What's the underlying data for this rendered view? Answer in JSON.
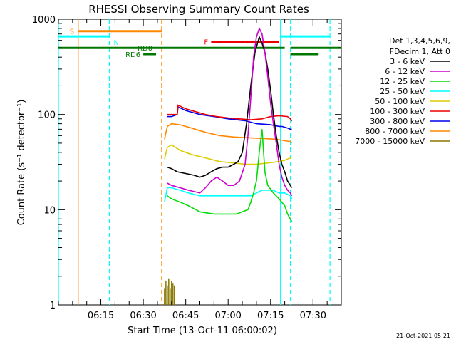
{
  "chart_data": {
    "type": "line",
    "title": "RHESSI Observing Summary Count Rates",
    "ylabel": "Count Rate (s⁻¹ detector⁻¹)",
    "xlabel": "Start Time (13-Oct-11 06:00:02)",
    "footer_date": "21-Oct-2021 05:21",
    "y_scale": "log",
    "ylim": [
      1,
      1000
    ],
    "y_ticks": [
      1,
      10,
      100,
      1000
    ],
    "y_tick_labels": [
      "1",
      "10",
      "100",
      "1000"
    ],
    "xlim_minutes": [
      0,
      100
    ],
    "x_ticks_minutes": [
      15,
      30,
      45,
      60,
      75,
      90
    ],
    "x_tick_labels": [
      "06:15",
      "06:30",
      "06:45",
      "07:00",
      "07:15",
      "07:30"
    ],
    "legend": {
      "header": [
        "Det 1,3,4,5,6,9,",
        "FDecim 1, Att 0"
      ],
      "position": "right",
      "entries": [
        {
          "label": "3 - 6 keV",
          "color": "#000000"
        },
        {
          "label": "6 - 12 keV",
          "color": "#cc00cc"
        },
        {
          "label": "12 - 25 keV",
          "color": "#00dd00"
        },
        {
          "label": "25 - 50 keV",
          "color": "#00ffff"
        },
        {
          "label": "50 - 100 keV",
          "color": "#ddcc00"
        },
        {
          "label": "100 - 300 keV",
          "color": "#ee0000"
        },
        {
          "label": "300 - 800 keV",
          "color": "#0000ee"
        },
        {
          "label": "800 - 7000 keV",
          "color": "#ff8800"
        },
        {
          "label": "7000 - 15000 keV",
          "color": "#887700"
        }
      ]
    },
    "flag_bars": [
      {
        "label": "S",
        "color": "#ff8800",
        "y": 750,
        "segments": [
          [
            7,
            36.5
          ]
        ]
      },
      {
        "label": "N",
        "color": "#00ffff",
        "y": 660,
        "segments": [
          [
            0,
            18
          ],
          [
            78.5,
            96
          ]
        ]
      },
      {
        "label": "RD0",
        "color": "#007700",
        "y": 500,
        "segments": [
          [
            0,
            80
          ],
          [
            82,
            100
          ]
        ]
      },
      {
        "label": "RD6",
        "color": "#007700",
        "y": 430,
        "segments": [
          [
            30,
            34.5
          ],
          [
            82,
            92
          ]
        ]
      },
      {
        "label": "F",
        "color": "#ee0000",
        "y": 580,
        "segments": [
          [
            54,
            78
          ]
        ]
      }
    ],
    "event_markers": [
      {
        "x": 0,
        "color": "#00ffff",
        "style": "solid"
      },
      {
        "x": 7,
        "color": "#ff8800",
        "style": "solid"
      },
      {
        "x": 18,
        "color": "#00ffff",
        "style": "dashed"
      },
      {
        "x": 36.5,
        "color": "#ff8800",
        "style": "dashed"
      },
      {
        "x": 78.5,
        "color": "#00ffff",
        "style": "solid"
      },
      {
        "x": 82,
        "color": "#00ffff",
        "style": "dashed"
      },
      {
        "x": 96,
        "color": "#00ffff",
        "style": "dashed"
      }
    ],
    "series": [
      {
        "name": "300 - 800 keV",
        "color": "#0000ee",
        "x": [
          38.5,
          40,
          42,
          42.3,
          45,
          50,
          55,
          60,
          63,
          66,
          70,
          75,
          78,
          78.5,
          79,
          81,
          82,
          82.5
        ],
        "y": [
          95,
          95,
          100,
          120,
          110,
          100,
          95,
          90,
          88,
          86,
          80,
          78,
          75,
          75,
          75,
          72,
          70,
          70
        ]
      },
      {
        "name": "100 - 300 keV",
        "color": "#ee0000",
        "x": [
          38.5,
          40,
          42,
          42.3,
          45,
          48,
          52,
          56,
          60,
          64,
          68,
          72,
          75,
          78,
          81,
          82,
          82.5
        ],
        "y": [
          100,
          100,
          100,
          125,
          115,
          108,
          100,
          95,
          92,
          90,
          88,
          90,
          95,
          97,
          95,
          90,
          85
        ]
      },
      {
        "name": "800 - 7000 keV",
        "color": "#ff8800",
        "x": [
          37.5,
          38.5,
          40,
          43,
          47,
          52,
          57,
          62,
          67,
          72,
          77,
          80,
          82,
          82.5
        ],
        "y": [
          55,
          75,
          80,
          78,
          72,
          65,
          60,
          58,
          57,
          56,
          55,
          53,
          52,
          50
        ]
      },
      {
        "name": "50 - 100 keV",
        "color": "#ddcc00",
        "x": [
          37.5,
          38.5,
          40,
          43,
          47,
          52,
          57,
          62,
          66,
          70,
          74,
          78,
          80,
          82,
          82.5
        ],
        "y": [
          34,
          45,
          48,
          42,
          38,
          35,
          32,
          31,
          30,
          30,
          31,
          32,
          33,
          35,
          36
        ]
      },
      {
        "name": "3 - 6 keV",
        "color": "#000000",
        "x": [
          38.5,
          40,
          42,
          45,
          48,
          50,
          52,
          54,
          56,
          58,
          60,
          62,
          63.5,
          65,
          66.5,
          68,
          69.5,
          71,
          72,
          73,
          74,
          75,
          76,
          77,
          78,
          79,
          80,
          81,
          82,
          82.5
        ],
        "y": [
          28,
          27,
          25,
          24,
          23,
          22,
          23,
          25,
          27,
          28,
          28,
          30,
          32,
          40,
          80,
          200,
          450,
          650,
          560,
          450,
          300,
          180,
          100,
          60,
          40,
          30,
          25,
          20,
          18,
          17
        ]
      },
      {
        "name": "6 - 12 keV",
        "color": "#cc00cc",
        "x": [
          38.5,
          40,
          43,
          46,
          50,
          52,
          54,
          56,
          58,
          60,
          62,
          64,
          66,
          67,
          68,
          69,
          70,
          71,
          72,
          73,
          74,
          75,
          76,
          77,
          78,
          79,
          80,
          81,
          82,
          82.5
        ],
        "y": [
          19,
          18,
          17,
          16,
          15,
          17,
          20,
          22,
          20,
          18,
          18,
          20,
          30,
          60,
          150,
          400,
          650,
          800,
          700,
          450,
          250,
          130,
          80,
          50,
          30,
          22,
          18,
          16,
          15,
          14
        ]
      },
      {
        "name": "25 - 50 keV",
        "color": "#00ffff",
        "x": [
          37.5,
          38.5,
          40,
          43,
          46,
          50,
          55,
          60,
          64,
          68,
          70,
          72,
          74,
          76,
          78,
          80,
          82,
          82.5
        ],
        "y": [
          12,
          17,
          17,
          16,
          15,
          14,
          14,
          14,
          14,
          14,
          15,
          16,
          16,
          16,
          15,
          15,
          14,
          13
        ]
      },
      {
        "name": "12 - 25 keV",
        "color": "#00dd00",
        "x": [
          38.5,
          40,
          43,
          46,
          50,
          55,
          60,
          63,
          65,
          67,
          68,
          69,
          70,
          71,
          72,
          73,
          74,
          76,
          78,
          80,
          81,
          82,
          82.5
        ],
        "y": [
          14,
          13,
          12,
          11,
          9.5,
          9,
          9,
          9,
          9.5,
          10,
          12,
          15,
          20,
          40,
          70,
          25,
          18,
          15,
          13,
          11,
          9,
          8,
          7.5
        ]
      },
      {
        "name": "7000 - 15000 keV",
        "color": "#887700",
        "x": [
          37.5,
          38,
          38.5,
          39,
          39.5,
          40,
          40.5,
          41
        ],
        "y": [
          1.5,
          1.8,
          1.6,
          1.9,
          1.5,
          1.8,
          1.7,
          1.6
        ]
      }
    ]
  }
}
